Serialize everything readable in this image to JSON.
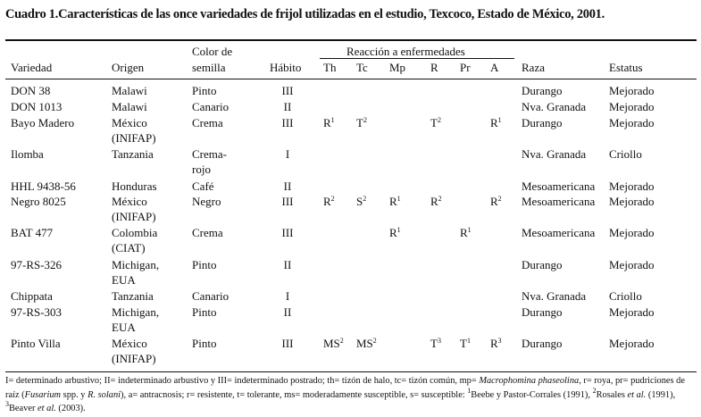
{
  "title": "Cuadro 1.Características de las once variedades de frijol utilizadas en el estudio, Texcoco, Estado de México, 2001.",
  "headers": {
    "variedad": "Variedad",
    "origen": "Origen",
    "color1": "Color de",
    "color2": "semilla",
    "habito": "Hábito",
    "group": "Reacción a enfermedades",
    "th": "Th",
    "tc": "Tc",
    "mp": "Mp",
    "r": "R",
    "pr": "Pr",
    "a": "A",
    "raza": "Raza",
    "estatus": "Estatus"
  },
  "rows": [
    {
      "variedad": "DON 38",
      "origen": [
        "Malawi",
        ""
      ],
      "color": [
        "Pinto",
        ""
      ],
      "habito": "III",
      "th": [
        "",
        ""
      ],
      "tc": [
        "",
        ""
      ],
      "mp": [
        "",
        ""
      ],
      "r": [
        "",
        ""
      ],
      "pr": [
        "",
        ""
      ],
      "a": [
        "",
        ""
      ],
      "raza": "Durango",
      "estatus": "Mejorado"
    },
    {
      "variedad": "DON 1013",
      "origen": [
        "Malawi",
        ""
      ],
      "color": [
        "Canario",
        ""
      ],
      "habito": "II",
      "th": [
        "",
        ""
      ],
      "tc": [
        "",
        ""
      ],
      "mp": [
        "",
        ""
      ],
      "r": [
        "",
        ""
      ],
      "pr": [
        "",
        ""
      ],
      "a": [
        "",
        ""
      ],
      "raza": "Nva. Granada",
      "estatus": "Mejorado"
    },
    {
      "variedad": "Bayo Madero",
      "origen": [
        "México",
        "(INIFAP)"
      ],
      "color": [
        "Crema",
        ""
      ],
      "habito": "III",
      "th": [
        "R",
        "1"
      ],
      "tc": [
        "T",
        "2"
      ],
      "mp": [
        "",
        ""
      ],
      "r": [
        "T",
        "2"
      ],
      "pr": [
        "",
        ""
      ],
      "a": [
        "R",
        "1"
      ],
      "raza": "Durango",
      "estatus": "Mejorado"
    },
    {
      "variedad": "Ilomba",
      "origen": [
        "Tanzania",
        ""
      ],
      "color": [
        "Crema-",
        "rojo"
      ],
      "habito": "I",
      "th": [
        "",
        ""
      ],
      "tc": [
        "",
        ""
      ],
      "mp": [
        "",
        ""
      ],
      "r": [
        "",
        ""
      ],
      "pr": [
        "",
        ""
      ],
      "a": [
        "",
        ""
      ],
      "raza": "Nva. Granada",
      "estatus": "Criollo"
    },
    {
      "variedad": "HHL 9438-56",
      "origen": [
        "Honduras",
        ""
      ],
      "color": [
        "Café",
        ""
      ],
      "habito": "II",
      "th": [
        "",
        ""
      ],
      "tc": [
        "",
        ""
      ],
      "mp": [
        "",
        ""
      ],
      "r": [
        "",
        ""
      ],
      "pr": [
        "",
        ""
      ],
      "a": [
        "",
        ""
      ],
      "raza": "Mesoamericana",
      "estatus": "Mejorado"
    },
    {
      "variedad": "Negro 8025",
      "origen": [
        "México",
        "(INIFAP)"
      ],
      "color": [
        "Negro",
        ""
      ],
      "habito": "III",
      "th": [
        "R",
        "2"
      ],
      "tc": [
        "S",
        "2"
      ],
      "mp": [
        "R",
        "1"
      ],
      "r": [
        "R",
        "2"
      ],
      "pr": [
        "",
        ""
      ],
      "a": [
        "R",
        "2"
      ],
      "raza": "Mesoamericana",
      "estatus": "Mejorado"
    },
    {
      "variedad": "BAT 477",
      "origen": [
        "Colombia",
        "(CIAT)"
      ],
      "color": [
        "Crema",
        ""
      ],
      "habito": "III",
      "th": [
        "",
        ""
      ],
      "tc": [
        "",
        ""
      ],
      "mp": [
        "R",
        "1"
      ],
      "r": [
        "",
        ""
      ],
      "pr": [
        "R",
        "1"
      ],
      "a": [
        "",
        ""
      ],
      "raza": "Mesoamericana",
      "estatus": "Mejorado"
    },
    {
      "variedad": "97-RS-326",
      "origen": [
        "Michigan,",
        "EUA"
      ],
      "color": [
        "Pinto",
        ""
      ],
      "habito": "II",
      "th": [
        "",
        ""
      ],
      "tc": [
        "",
        ""
      ],
      "mp": [
        "",
        ""
      ],
      "r": [
        "",
        ""
      ],
      "pr": [
        "",
        ""
      ],
      "a": [
        "",
        ""
      ],
      "raza": "Durango",
      "estatus": "Mejorado"
    },
    {
      "variedad": "Chippata",
      "origen": [
        "Tanzania",
        ""
      ],
      "color": [
        "Canario",
        ""
      ],
      "habito": "I",
      "th": [
        "",
        ""
      ],
      "tc": [
        "",
        ""
      ],
      "mp": [
        "",
        ""
      ],
      "r": [
        "",
        ""
      ],
      "pr": [
        "",
        ""
      ],
      "a": [
        "",
        ""
      ],
      "raza": "Nva. Granada",
      "estatus": "Criollo"
    },
    {
      "variedad": "97-RS-303",
      "origen": [
        "Michigan,",
        "EUA"
      ],
      "color": [
        "Pinto",
        ""
      ],
      "habito": "II",
      "th": [
        "",
        ""
      ],
      "tc": [
        "",
        ""
      ],
      "mp": [
        "",
        ""
      ],
      "r": [
        "",
        ""
      ],
      "pr": [
        "",
        ""
      ],
      "a": [
        "",
        ""
      ],
      "raza": "Durango",
      "estatus": "Mejorado"
    },
    {
      "variedad": "Pinto Villa",
      "origen": [
        "México",
        "(INIFAP)"
      ],
      "color": [
        "Pinto",
        ""
      ],
      "habito": "III",
      "th": [
        "MS",
        "2"
      ],
      "tc": [
        "MS",
        "2"
      ],
      "mp": [
        "",
        ""
      ],
      "r": [
        "T",
        "3"
      ],
      "pr": [
        "T",
        "1"
      ],
      "a": [
        "R",
        "3"
      ],
      "raza": "Durango",
      "estatus": "Mejorado"
    }
  ],
  "footnote": {
    "p1": "I= determinado arbustivo; II= indeterminado arbustivo y III= indeterminado postrado; th= tizón de halo, tc= tizón común, mp= ",
    "i1": "Macrophomina phaseolina",
    "p2": ", r= roya, pr= pudriciones de raíz (",
    "i2": "Fusarium",
    "p3": " spp. y ",
    "i3": "R. solani",
    "p4": "), a= antracnosis; r= resistente, t= tolerante, ms= moderadamente susceptible, s= susceptible: ",
    "s1": "1",
    "p5": "Beebe y Pastor-Corrales (1991), ",
    "s2": "2",
    "p6": "Rosales ",
    "i4": "et al.",
    "p7": " (1991), ",
    "s3": "3",
    "p8": "Beaver ",
    "i5": "et al.",
    "p9": " (2003)."
  }
}
